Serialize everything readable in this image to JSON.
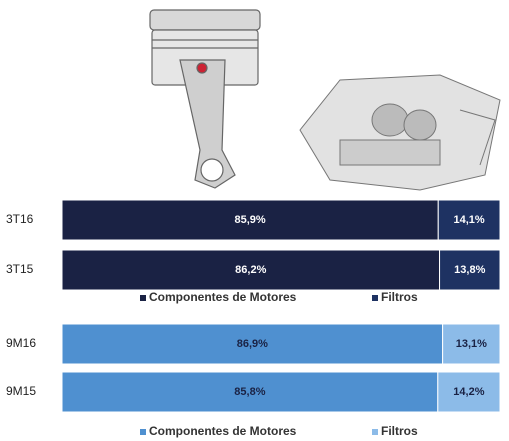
{
  "chart_data": [
    {
      "type": "bar",
      "orientation": "horizontal",
      "stacked": true,
      "categories": [
        "3T16",
        "3T15"
      ],
      "series": [
        {
          "name": "Componentes de Motores",
          "color": "#1a2244",
          "label_color": "#ffffff",
          "values": [
            85.9,
            86.2
          ],
          "value_labels": [
            "85,9%",
            "86,2%"
          ]
        },
        {
          "name": "Filtros",
          "color": "#1e3262",
          "label_color": "#ffffff",
          "values": [
            14.1,
            13.8
          ],
          "value_labels": [
            "14,1%",
            "13,8%"
          ]
        }
      ],
      "xlim": [
        0,
        100
      ]
    },
    {
      "type": "bar",
      "orientation": "horizontal",
      "stacked": true,
      "categories": [
        "9M16",
        "9M15"
      ],
      "series": [
        {
          "name": "Componentes de Motores",
          "color": "#4f90d0",
          "label_color": "#1a2244",
          "values": [
            86.9,
            85.8
          ],
          "value_labels": [
            "86,9%",
            "85,8%"
          ]
        },
        {
          "name": "Filtros",
          "color": "#8cbbe8",
          "label_color": "#1a2244",
          "values": [
            13.1,
            14.2
          ],
          "value_labels": [
            "13,1%",
            "14,2%"
          ]
        }
      ],
      "xlim": [
        0,
        100
      ]
    }
  ]
}
